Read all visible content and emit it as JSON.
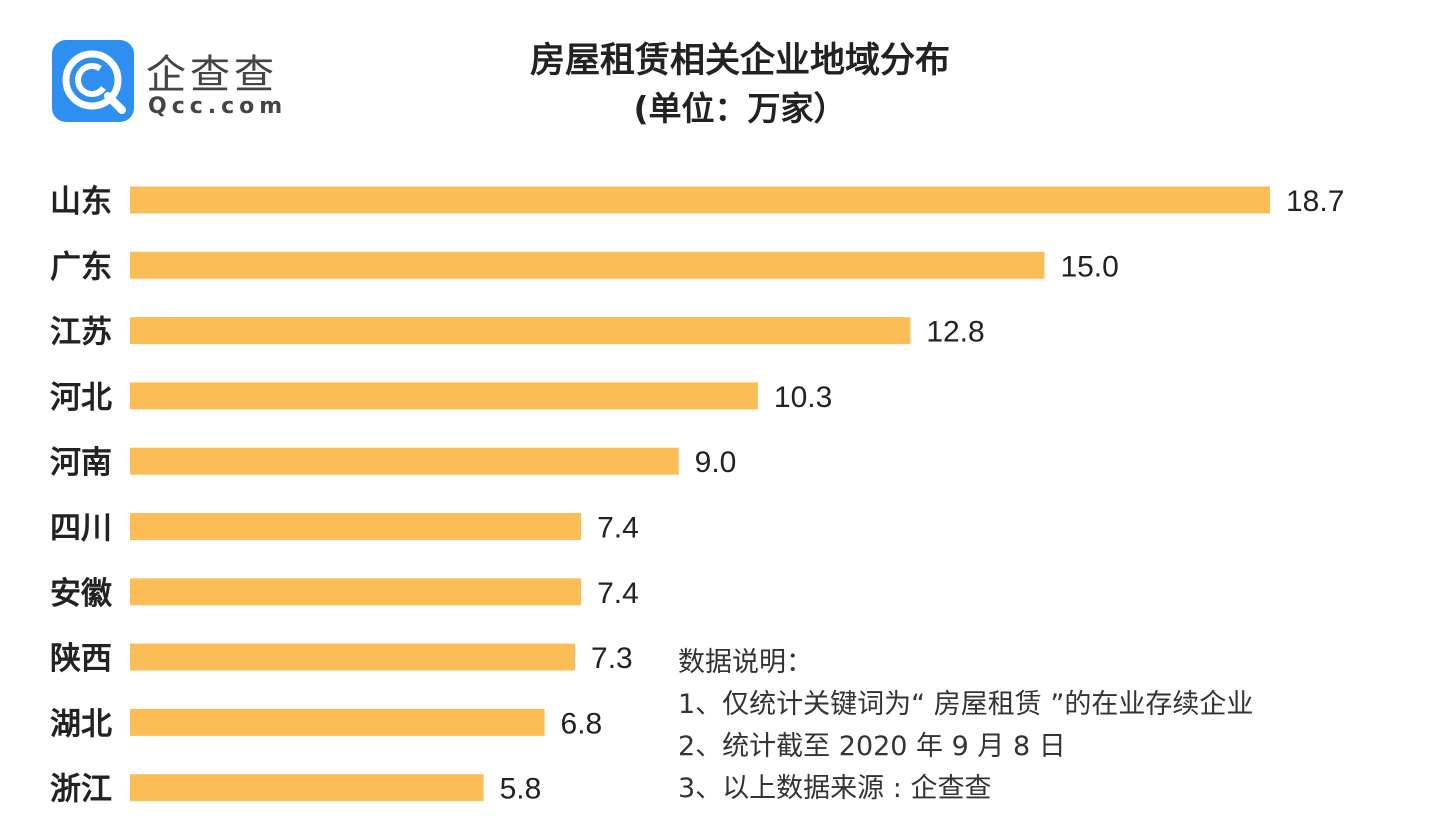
{
  "logo": {
    "name": "企查查",
    "domain": "Qcc.com"
  },
  "chart_data": {
    "type": "bar",
    "orientation": "horizontal",
    "title": "房屋租赁相关企业地域分布",
    "subtitle": "(单位：万家）",
    "categories": [
      "山东",
      "广东",
      "江苏",
      "河北",
      "河南",
      "四川",
      "安徽",
      "陕西",
      "湖北",
      "浙江"
    ],
    "values": [
      18.7,
      15.0,
      12.8,
      10.3,
      9.0,
      7.4,
      7.4,
      7.3,
      6.8,
      5.8
    ],
    "value_labels": [
      "18.7",
      "15.0",
      "12.8",
      "10.3",
      "9.0",
      "7.4",
      "7.4",
      "7.3",
      "6.8",
      "5.8"
    ],
    "xlim": [
      0,
      18.7
    ],
    "grid": false,
    "legend": "none",
    "bar_color": "#fdbd56"
  },
  "notes": {
    "heading": "数据说明：",
    "items": [
      "1、仅统计关键词为“ 房屋租赁 ”的在业存续企业",
      "2、统计截至 2020 年 9 月 8 日",
      "3、以上数据来源 : 企查查"
    ]
  },
  "colors": {
    "logo_blue": "#2e8ff0",
    "text": "#222222"
  }
}
